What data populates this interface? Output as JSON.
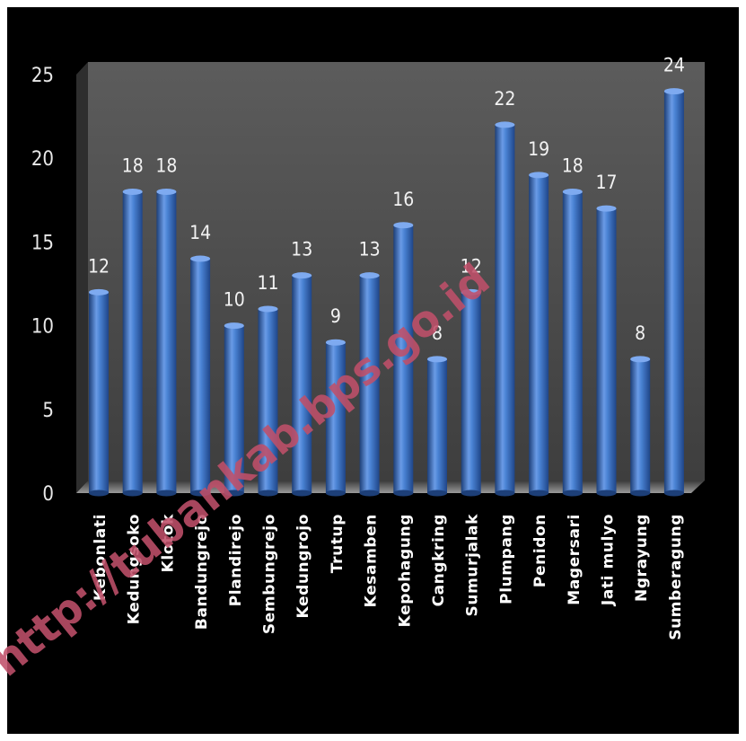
{
  "colors": {
    "background": "#000000",
    "frame": "#ffffff",
    "bar": "#3f79c9",
    "bar_highlight": "#7eaaf0",
    "bar_shadow": "#1d3f78",
    "plot_back": "#505050",
    "watermark": "#c0506a"
  },
  "watermark": "http://tubankab.bps.go.id",
  "chart_data": {
    "type": "bar",
    "style": "3d-cylinder",
    "categories": [
      "Kebonlati",
      "Kedungsoko",
      "Klotok",
      "Bandungrejo",
      "Plandirejo",
      "Sembungrejo",
      "Kedungrojo",
      "Trutup",
      "Kesamben",
      "Kepohagung",
      "Cangkring",
      "Sumurjalak",
      "Plumpang",
      "Penidon",
      "Magersari",
      "Jati mulyo",
      "Ngrayung",
      "Sumberagung"
    ],
    "values": [
      12,
      18,
      18,
      14,
      10,
      11,
      13,
      9,
      13,
      16,
      8,
      12,
      22,
      19,
      18,
      17,
      8,
      24
    ],
    "data_labels": [
      "12",
      "18",
      "18",
      "14",
      "10",
      "11",
      "13",
      "9",
      "13",
      "16",
      "8",
      "12",
      "22",
      "19",
      "18",
      "17",
      "8",
      "24"
    ],
    "y_ticks": [
      "0",
      "5",
      "10",
      "15",
      "20",
      "25"
    ],
    "ylim": [
      0,
      25
    ],
    "grid": false,
    "legend": "none",
    "title": "",
    "xlabel": "",
    "ylabel": ""
  }
}
